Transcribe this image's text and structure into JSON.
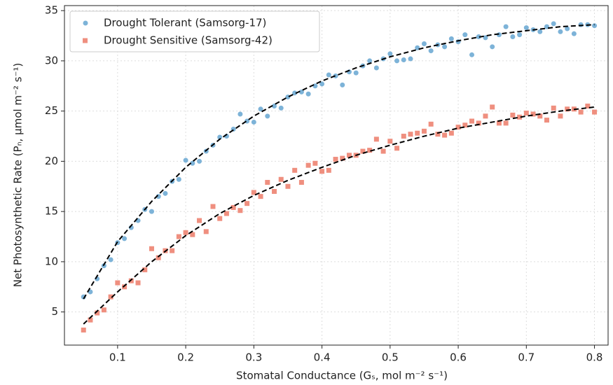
{
  "chart_data": {
    "type": "scatter",
    "x_label": "Stomatal Conductance (Gₛ, mol m⁻² s⁻¹)",
    "y_label": "Net Photosynthetic Rate (Pₙ, μmol m⁻² s⁻¹)",
    "xlim": [
      0.022,
      0.82
    ],
    "ylim": [
      1.7,
      35.5
    ],
    "xticks": [
      0.1,
      0.2,
      0.3,
      0.4,
      0.5,
      0.6,
      0.7,
      0.8
    ],
    "yticks": [
      5,
      10,
      15,
      20,
      25,
      30,
      35
    ],
    "grid": true,
    "legend": "upper left",
    "x": [
      0.05,
      0.06,
      0.07,
      0.08,
      0.09,
      0.1,
      0.11,
      0.12,
      0.13,
      0.14,
      0.15,
      0.16,
      0.17,
      0.18,
      0.19,
      0.2,
      0.21,
      0.22,
      0.23,
      0.24,
      0.25,
      0.26,
      0.27,
      0.28,
      0.29,
      0.3,
      0.31,
      0.32,
      0.33,
      0.34,
      0.35,
      0.36,
      0.37,
      0.38,
      0.39,
      0.4,
      0.41,
      0.42,
      0.43,
      0.44,
      0.45,
      0.46,
      0.47,
      0.48,
      0.49,
      0.5,
      0.51,
      0.52,
      0.53,
      0.54,
      0.55,
      0.56,
      0.57,
      0.58,
      0.59,
      0.6,
      0.61,
      0.62,
      0.63,
      0.64,
      0.65,
      0.66,
      0.67,
      0.68,
      0.69,
      0.7,
      0.71,
      0.72,
      0.73,
      0.74,
      0.75,
      0.76,
      0.77,
      0.78,
      0.79,
      0.8
    ],
    "series": [
      {
        "name": "Drought Tolerant (Samsorg-17)",
        "color": "#7db3d8",
        "marker": "circle",
        "values": [
          6.5,
          7.0,
          8.3,
          9.6,
          10.2,
          11.9,
          12.3,
          13.4,
          14.1,
          15.2,
          15.0,
          16.5,
          16.8,
          18.0,
          18.2,
          20.1,
          19.8,
          20.0,
          21.0,
          21.6,
          22.4,
          22.5,
          23.2,
          24.7,
          24.0,
          23.9,
          25.2,
          24.5,
          25.5,
          25.3,
          26.4,
          26.8,
          26.9,
          26.7,
          27.5,
          27.7,
          28.6,
          28.5,
          27.6,
          28.9,
          28.8,
          29.5,
          30.0,
          29.3,
          30.2,
          30.7,
          30.0,
          30.1,
          30.2,
          31.3,
          31.7,
          31.0,
          31.6,
          31.4,
          32.2,
          31.9,
          32.6,
          30.6,
          32.4,
          32.3,
          31.4,
          32.6,
          33.4,
          32.4,
          32.6,
          33.3,
          33.1,
          32.9,
          33.4,
          33.7,
          32.9,
          33.2,
          32.7,
          33.6,
          33.6,
          33.5
        ]
      },
      {
        "name": "Drought Sensitive (Samsorg-42)",
        "color": "#ef8f7f",
        "marker": "square",
        "values": [
          3.2,
          4.2,
          4.9,
          5.2,
          6.5,
          7.9,
          7.5,
          8.1,
          7.9,
          9.2,
          11.3,
          10.4,
          11.1,
          11.1,
          12.5,
          12.9,
          12.7,
          14.1,
          13.0,
          15.5,
          14.3,
          14.8,
          15.4,
          15.1,
          15.8,
          16.9,
          16.5,
          17.9,
          17.0,
          18.2,
          17.5,
          19.1,
          17.9,
          19.6,
          19.8,
          19.0,
          19.1,
          20.2,
          20.3,
          20.6,
          20.6,
          21.0,
          21.1,
          22.2,
          21.0,
          22.0,
          21.3,
          22.5,
          22.7,
          22.8,
          23.0,
          23.7,
          22.7,
          22.6,
          22.8,
          23.4,
          23.6,
          24.0,
          23.8,
          24.5,
          25.4,
          23.8,
          23.8,
          24.6,
          24.4,
          24.8,
          24.7,
          24.5,
          24.1,
          25.3,
          24.5,
          25.2,
          25.2,
          24.9,
          25.5,
          24.9
        ]
      }
    ],
    "fit_x": [
      0.05,
      0.1,
      0.15,
      0.2,
      0.25,
      0.3,
      0.35,
      0.4,
      0.45,
      0.5,
      0.55,
      0.6,
      0.65,
      0.7,
      0.75,
      0.8
    ],
    "fits": [
      {
        "color": "#000000",
        "values": [
          6.3,
          12.0,
          16.0,
          19.4,
          22.2,
          24.5,
          26.4,
          28.0,
          29.3,
          30.4,
          31.3,
          32.0,
          32.6,
          33.0,
          33.4,
          33.6
        ]
      },
      {
        "color": "#000000",
        "values": [
          3.8,
          7.0,
          10.0,
          12.6,
          14.8,
          16.6,
          18.1,
          19.4,
          20.6,
          21.6,
          22.5,
          23.3,
          23.9,
          24.5,
          25.0,
          25.4
        ]
      }
    ]
  }
}
